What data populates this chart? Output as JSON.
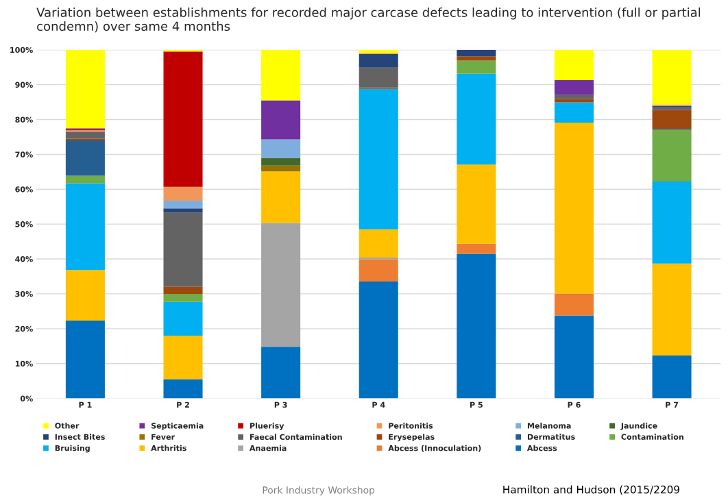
{
  "chart_data": {
    "type": "bar",
    "stacked": true,
    "title": "Variation between establishments for recorded major carcase defects leading to intervention (full or partial condemn) over same 4 months",
    "categories": [
      "P 1",
      "P 2",
      "P 3",
      "P 4",
      "P 5",
      "P 6",
      "P 7"
    ],
    "ylim": [
      0,
      100
    ],
    "yticks": [
      {
        "value": 0,
        "label": "0%"
      },
      {
        "value": 10,
        "label": "10%"
      },
      {
        "value": 20,
        "label": "20%"
      },
      {
        "value": 30,
        "label": "30%"
      },
      {
        "value": 40,
        "label": "40%"
      },
      {
        "value": 50,
        "label": "50%"
      },
      {
        "value": 60,
        "label": "60%"
      },
      {
        "value": 70,
        "label": "70%"
      },
      {
        "value": 80,
        "label": "80%"
      },
      {
        "value": 90,
        "label": "90%"
      },
      {
        "value": 100,
        "label": "100%"
      }
    ],
    "grid": "y",
    "legend": "bottom",
    "series": [
      {
        "name": "Abcess",
        "color": "#0070c0",
        "values": [
          22.3,
          5.5,
          14.8,
          33.5,
          41.5,
          23.8,
          12.3
        ]
      },
      {
        "name": "Abcess (Innoculation)",
        "color": "#ed7d31",
        "values": [
          0,
          0,
          0,
          6.4,
          2.9,
          6.3,
          0
        ]
      },
      {
        "name": "Anaemia",
        "color": "#a5a5a5",
        "values": [
          0,
          0,
          35.5,
          0.5,
          0,
          0,
          0
        ]
      },
      {
        "name": "Arthritis",
        "color": "#ffc000",
        "values": [
          14.5,
          12.5,
          14.8,
          8.1,
          22.7,
          49.0,
          26.4
        ]
      },
      {
        "name": "Bruising",
        "color": "#00b0f0",
        "values": [
          24.9,
          9.7,
          0,
          40.3,
          26.0,
          5.8,
          23.5
        ]
      },
      {
        "name": "Contamination",
        "color": "#70ad47",
        "values": [
          2.2,
          2.3,
          0,
          0,
          3.8,
          0,
          14.8
        ]
      },
      {
        "name": "Dermatitus",
        "color": "#255e91",
        "values": [
          10.1,
          0,
          0,
          0,
          0,
          0,
          0.3
        ]
      },
      {
        "name": "Erysepelas",
        "color": "#9e480e",
        "values": [
          0.5,
          2.0,
          0,
          0.4,
          1.2,
          1.0,
          5.4
        ]
      },
      {
        "name": "Faecal Contamination",
        "color": "#636363",
        "values": [
          2.0,
          21.3,
          0,
          5.7,
          0,
          1.1,
          0.8
        ]
      },
      {
        "name": "Fever",
        "color": "#997300",
        "values": [
          0,
          0,
          1.7,
          0,
          0,
          0,
          0
        ]
      },
      {
        "name": "Insect Bites",
        "color": "#264478",
        "values": [
          0,
          1.2,
          0,
          3.9,
          1.9,
          0,
          0.4
        ]
      },
      {
        "name": "Jaundice",
        "color": "#43682b",
        "values": [
          0,
          0,
          2.2,
          0,
          0,
          0,
          0
        ]
      },
      {
        "name": "Melanoma",
        "color": "#7eaede",
        "values": [
          0,
          2.2,
          5.3,
          0,
          0,
          0,
          0
        ]
      },
      {
        "name": "Peritonitis",
        "color": "#f1975a",
        "values": [
          0.4,
          4.0,
          0,
          0.3,
          0,
          0,
          0.4
        ]
      },
      {
        "name": "Pluerisy",
        "color": "#c00000",
        "values": [
          0.3,
          38.8,
          0,
          0,
          0,
          0,
          0
        ]
      },
      {
        "name": "Septicaemia",
        "color": "#7030a0",
        "values": [
          0.3,
          0,
          11.2,
          0,
          0,
          4.3,
          0
        ]
      },
      {
        "name": "Other",
        "color": "#ffff00",
        "values": [
          22.5,
          0.5,
          14.5,
          0.9,
          0,
          8.7,
          15.7
        ]
      }
    ],
    "annotations": [
      "Pork Industry Workshop",
      "Hamilton and Hudson (2015/2209"
    ]
  }
}
